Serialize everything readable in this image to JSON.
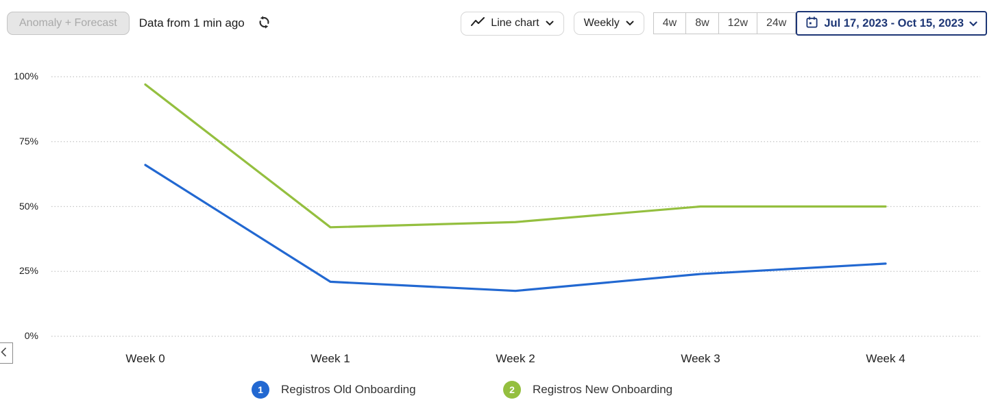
{
  "toolbar": {
    "anomaly_button_label": "Anomaly + Forecast",
    "data_freshness": "Data from 1 min ago",
    "chart_type_label": "Line chart",
    "granularity_label": "Weekly",
    "range_buttons": [
      "4w",
      "8w",
      "12w",
      "24w"
    ],
    "date_range_label": "Jul 17, 2023 - Oct 15, 2023"
  },
  "colors": {
    "accent_navy": "#1c3575",
    "series_blue": "#2268d1",
    "series_green": "#94bf3f",
    "gridline": "#c4c4c4"
  },
  "chart_data": {
    "type": "line",
    "categories": [
      "Week 0",
      "Week 1",
      "Week 2",
      "Week 3",
      "Week 4"
    ],
    "series": [
      {
        "name": "Registros Old Onboarding",
        "color": "#2268d1",
        "values": [
          66,
          21,
          17.5,
          24,
          28
        ]
      },
      {
        "name": "Registros New Onboarding",
        "color": "#94bf3f",
        "values": [
          97,
          42,
          44,
          50,
          50
        ]
      }
    ],
    "title": "",
    "xlabel": "",
    "ylabel": "",
    "ylim": [
      0,
      100
    ],
    "yticks": [
      0,
      25,
      50,
      75,
      100
    ],
    "ytick_labels": [
      "0%",
      "25%",
      "50%",
      "75%",
      "100%"
    ],
    "grid": "horizontal-dotted",
    "legend_position": "bottom"
  },
  "legend": {
    "items": [
      {
        "badge": "1"
      },
      {
        "badge": "2"
      }
    ]
  },
  "nav": {
    "prev": "chevron-left"
  }
}
